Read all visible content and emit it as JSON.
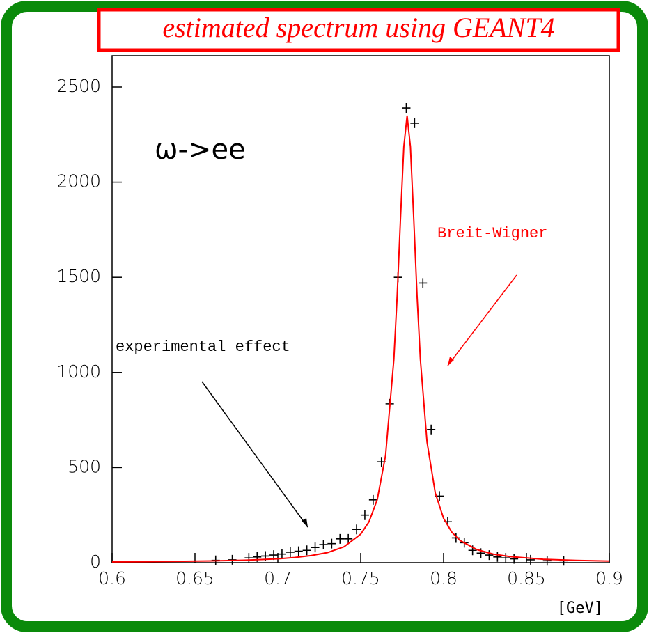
{
  "chart_data": {
    "type": "line",
    "title": "estimated spectrum using GEANT4",
    "x_label": "[GeV]",
    "annotations": [
      {
        "text": "ω->ee",
        "color": "#000000"
      },
      {
        "text": "Breit-Wigner",
        "color": "#ff0000"
      },
      {
        "text": "experimental effect",
        "color": "#000000"
      }
    ],
    "xlim": [
      0.6,
      0.9
    ],
    "xticks": [
      0.6,
      0.65,
      0.7,
      0.75,
      0.8,
      0.85,
      0.9
    ],
    "ylim": [
      0,
      2500
    ],
    "yticks": [
      0,
      500,
      1000,
      1500,
      2000,
      2500
    ],
    "grid": false,
    "series": [
      {
        "type": "scatter",
        "marker": "+",
        "color": "#000000",
        "x": [
          0.6625,
          0.6725,
          0.6825,
          0.6875,
          0.6925,
          0.6975,
          0.7025,
          0.7075,
          0.7125,
          0.7175,
          0.7225,
          0.7275,
          0.7325,
          0.7375,
          0.7425,
          0.7475,
          0.7525,
          0.7575,
          0.7625,
          0.7675,
          0.7725,
          0.7775,
          0.7825,
          0.7875,
          0.7925,
          0.7975,
          0.8025,
          0.8075,
          0.8125,
          0.8175,
          0.8225,
          0.8275,
          0.8325,
          0.8375,
          0.8425,
          0.8525,
          0.8625,
          0.8725
        ],
        "values": [
          12,
          15,
          25,
          30,
          35,
          40,
          45,
          55,
          60,
          65,
          80,
          95,
          100,
          125,
          125,
          175,
          250,
          330,
          530,
          835,
          1500,
          2390,
          2310,
          1470,
          700,
          350,
          215,
          130,
          105,
          65,
          50,
          40,
          30,
          25,
          20,
          15,
          10,
          10
        ]
      },
      {
        "type": "line",
        "color": "#ff0000",
        "x": [
          0.6,
          0.62,
          0.64,
          0.66,
          0.68,
          0.7,
          0.71,
          0.72,
          0.73,
          0.74,
          0.75,
          0.755,
          0.76,
          0.765,
          0.77,
          0.772,
          0.774,
          0.776,
          0.778,
          0.78,
          0.782,
          0.784,
          0.786,
          0.79,
          0.795,
          0.8,
          0.805,
          0.81,
          0.82,
          0.83,
          0.84,
          0.86,
          0.88,
          0.9
        ],
        "values": [
          4,
          5,
          7,
          9,
          13,
          20,
          27,
          37,
          53,
          84,
          150,
          215,
          332,
          564,
          1068,
          1403,
          1808,
          2186,
          2350,
          2186,
          1808,
          1403,
          1068,
          635,
          366,
          233,
          160,
          116,
          69,
          45,
          32,
          18,
          12,
          8
        ]
      }
    ]
  }
}
